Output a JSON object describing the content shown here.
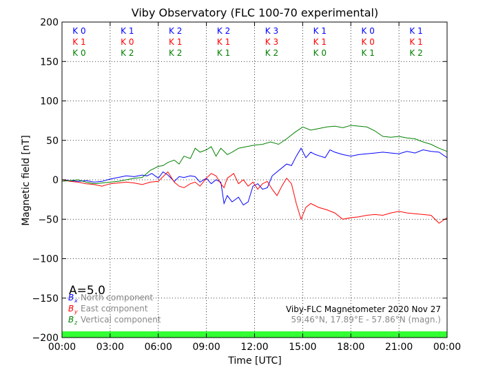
{
  "chart_data": {
    "type": "line",
    "title": "Viby Observatory (FLC 100-70 experimental)",
    "xlabel": "Time [UTC]",
    "ylabel": "Magnetic field [nT]",
    "xlim": [
      0,
      24
    ],
    "ylim": [
      -200,
      200
    ],
    "grid": true,
    "x_ticks": [
      {
        "value": 0,
        "label": "00:00"
      },
      {
        "value": 3,
        "label": "03:00"
      },
      {
        "value": 6,
        "label": "06:00"
      },
      {
        "value": 9,
        "label": "09:00"
      },
      {
        "value": 12,
        "label": "12:00"
      },
      {
        "value": 15,
        "label": "15:00"
      },
      {
        "value": 18,
        "label": "18:00"
      },
      {
        "value": 21,
        "label": "21:00"
      },
      {
        "value": 24,
        "label": "00:00"
      }
    ],
    "y_ticks": [
      {
        "value": 200,
        "label": "200"
      },
      {
        "value": 150,
        "label": "150"
      },
      {
        "value": 100,
        "label": "100"
      },
      {
        "value": 50,
        "label": "50"
      },
      {
        "value": 0,
        "label": "0"
      },
      {
        "value": -50,
        "label": "−50"
      },
      {
        "value": -100,
        "label": "−100"
      },
      {
        "value": -150,
        "label": "−150"
      },
      {
        "value": -200,
        "label": "−200"
      }
    ],
    "k_indices": {
      "interval_hours": 3,
      "rows": [
        {
          "color": "#0000ff",
          "labels": [
            "K 0",
            "K 1",
            "K 2",
            "K 2",
            "K 3",
            "K 1",
            "K 0",
            "K 1"
          ]
        },
        {
          "color": "#ff0000",
          "labels": [
            "K 1",
            "K 0",
            "K 1",
            "K 1",
            "K 3",
            "K 1",
            "K 0",
            "K 1"
          ]
        },
        {
          "color": "#008000",
          "labels": [
            "K 0",
            "K 2",
            "K 2",
            "K 1",
            "K 2",
            "K 0",
            "K 1",
            "K 2"
          ]
        }
      ]
    },
    "a_index_label": "A=5.0",
    "legend": {
      "placement": "bottom-left",
      "items": [
        {
          "symbol": "B",
          "sub": "x",
          "text": "North component",
          "color": "#0000ff"
        },
        {
          "symbol": "B",
          "sub": "y",
          "text": "East component",
          "color": "#ff0000"
        },
        {
          "symbol": "B",
          "sub": "z",
          "text": "Vertical component",
          "color": "#008000"
        }
      ]
    },
    "info_line_1": "Viby-FLC Magnetometer 2020 Nov 27",
    "info_line_2": "59.46°N, 17.89°E - 57.86°N (magn.)",
    "status_bar_color": "#33ff33",
    "series": [
      {
        "name": "B_x North component",
        "color": "#0000ff",
        "x": [
          0,
          0.5,
          1,
          1.5,
          2,
          2.5,
          3,
          3.5,
          4,
          4.5,
          5,
          5.3,
          5.6,
          6,
          6.3,
          6.6,
          7,
          7.3,
          7.6,
          8,
          8.3,
          8.6,
          9,
          9.3,
          9.6,
          9.9,
          10.1,
          10.3,
          10.6,
          11,
          11.3,
          11.6,
          11.9,
          12.2,
          12.5,
          12.8,
          13.1,
          13.4,
          13.7,
          14,
          14.3,
          14.6,
          14.9,
          15.2,
          15.5,
          15.8,
          16.1,
          16.4,
          16.7,
          17,
          17.5,
          18,
          18.5,
          19,
          19.5,
          20,
          20.5,
          21,
          21.5,
          22,
          22.5,
          23,
          23.5,
          24
        ],
        "y": [
          0,
          -1,
          -2,
          -1,
          -3,
          -2,
          1,
          3,
          5,
          4,
          6,
          5,
          8,
          2,
          10,
          6,
          -2,
          4,
          3,
          5,
          4,
          -3,
          2,
          -5,
          0,
          -3,
          -30,
          -20,
          -28,
          -22,
          -32,
          -28,
          -8,
          -5,
          -12,
          -10,
          5,
          10,
          15,
          20,
          18,
          30,
          40,
          28,
          35,
          32,
          30,
          28,
          38,
          35,
          32,
          30,
          32,
          33,
          34,
          35,
          34,
          33,
          36,
          34,
          38,
          36,
          35,
          28
        ]
      },
      {
        "name": "B_y East component",
        "color": "#ff0000",
        "x": [
          0,
          0.5,
          1,
          1.5,
          2,
          2.5,
          3,
          3.5,
          4,
          4.5,
          5,
          5.5,
          6,
          6.3,
          6.6,
          7,
          7.3,
          7.6,
          8,
          8.3,
          8.6,
          9,
          9.3,
          9.6,
          9.9,
          10.1,
          10.3,
          10.5,
          10.7,
          11,
          11.3,
          11.6,
          11.9,
          12.2,
          12.5,
          12.8,
          13.1,
          13.4,
          13.7,
          14,
          14.3,
          14.6,
          14.9,
          15.2,
          15.5,
          16,
          16.5,
          17,
          17.5,
          18,
          18.5,
          19,
          19.5,
          20,
          20.5,
          21,
          21.5,
          22,
          22.5,
          23,
          23.5,
          24
        ],
        "y": [
          0,
          -2,
          -3,
          -5,
          -6,
          -8,
          -5,
          -4,
          -3,
          -4,
          -6,
          -3,
          -2,
          4,
          10,
          -3,
          -8,
          -10,
          -5,
          -3,
          -8,
          2,
          8,
          5,
          -5,
          -10,
          2,
          5,
          8,
          -5,
          0,
          -8,
          -3,
          -12,
          -5,
          -2,
          -12,
          -20,
          -8,
          2,
          -5,
          -30,
          -50,
          -35,
          -30,
          -35,
          -38,
          -42,
          -50,
          -48,
          -47,
          -45,
          -44,
          -45,
          -42,
          -40,
          -42,
          -43,
          -44,
          -45,
          -55,
          -48
        ]
      },
      {
        "name": "B_z Vertical component",
        "color": "#008000",
        "x": [
          0,
          0.5,
          1,
          1.5,
          2,
          2.5,
          3,
          3.5,
          4,
          4.5,
          5,
          5.5,
          6,
          6.3,
          6.6,
          7,
          7.3,
          7.6,
          8,
          8.3,
          8.6,
          9,
          9.3,
          9.6,
          9.9,
          10.3,
          10.6,
          11,
          11.5,
          12,
          12.5,
          13,
          13.5,
          14,
          14.5,
          15,
          15.5,
          16,
          16.5,
          17,
          17.5,
          18,
          18.5,
          19,
          19.5,
          20,
          20.5,
          21,
          21.5,
          22,
          22.5,
          23,
          23.5,
          24
        ],
        "y": [
          -2,
          -1,
          0,
          -3,
          -5,
          -4,
          -3,
          -2,
          0,
          2,
          3,
          12,
          17,
          18,
          22,
          25,
          20,
          30,
          27,
          40,
          35,
          38,
          42,
          30,
          40,
          32,
          35,
          40,
          42,
          44,
          45,
          48,
          45,
          52,
          60,
          67,
          63,
          65,
          67,
          68,
          66,
          69,
          68,
          67,
          62,
          55,
          54,
          55,
          53,
          52,
          48,
          45,
          40,
          36
        ]
      }
    ]
  }
}
